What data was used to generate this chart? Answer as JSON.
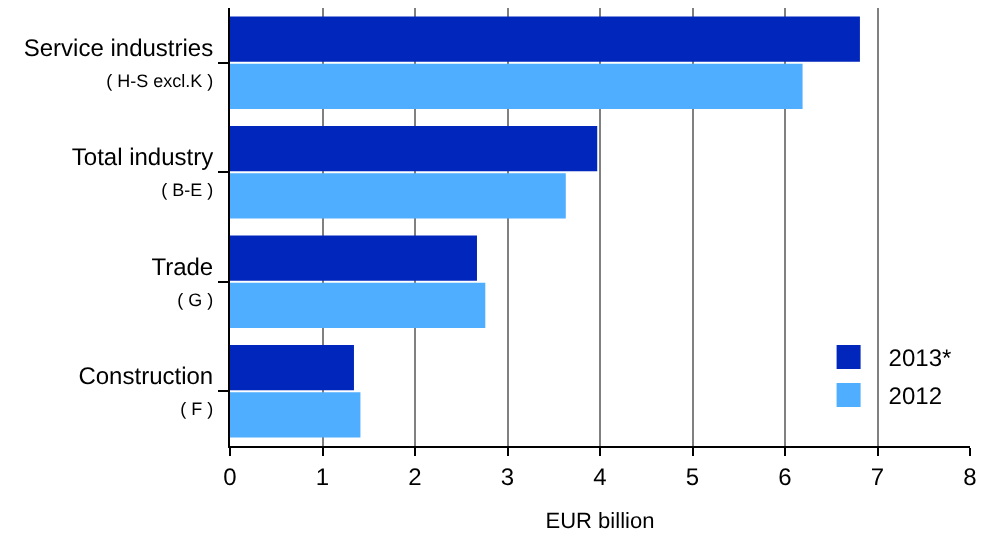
{
  "chart_data": {
    "type": "bar",
    "orientation": "horizontal",
    "xlabel": "EUR billion",
    "categories": [
      "Service industries\n( H-S excl.K )",
      "Total industry\n( B-E )",
      "Trade\n( G )",
      "Construction\n( F )"
    ],
    "series": [
      {
        "name": "2013*",
        "color": "#0026bb",
        "values": [
          6.81,
          3.97,
          2.67,
          1.34
        ]
      },
      {
        "name": "2012",
        "color": "#4faeff",
        "values": [
          6.19,
          3.63,
          2.76,
          1.41
        ]
      }
    ],
    "xlim": [
      0,
      8
    ],
    "xticks": [
      0,
      1,
      2,
      3,
      4,
      5,
      6,
      7,
      8
    ],
    "grid": "x",
    "legend": "bottom right"
  }
}
